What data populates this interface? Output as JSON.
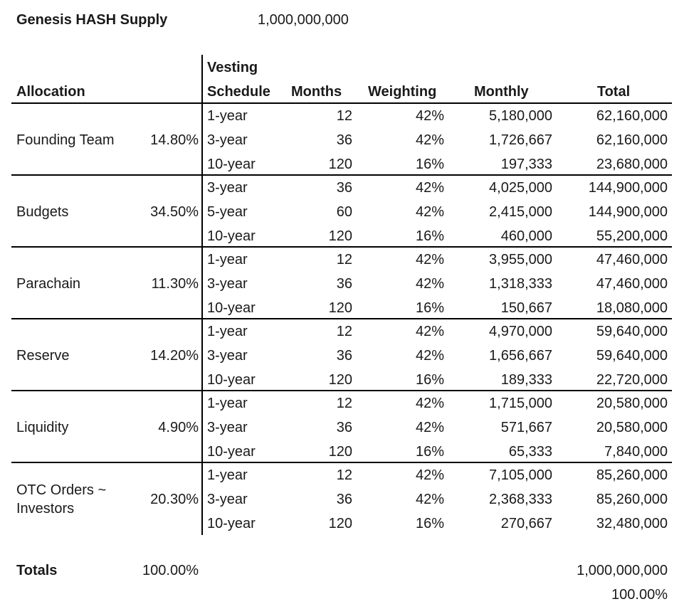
{
  "header": {
    "supply_label": "Genesis HASH Supply",
    "supply_value": "1,000,000,000"
  },
  "columns": {
    "allocation": "Allocation",
    "vesting": "Vesting",
    "schedule": "Schedule",
    "months": "Months",
    "weighting": "Weighting",
    "monthly": "Monthly",
    "total": "Total"
  },
  "groups": [
    {
      "name_lines": [
        "Founding Team"
      ],
      "percent": "14.80%",
      "rows": [
        {
          "schedule": "1-year",
          "months": "12",
          "weighting": "42%",
          "monthly": "5,180,000",
          "total": "62,160,000"
        },
        {
          "schedule": "3-year",
          "months": "36",
          "weighting": "42%",
          "monthly": "1,726,667",
          "total": "62,160,000"
        },
        {
          "schedule": "10-year",
          "months": "120",
          "weighting": "16%",
          "monthly": "197,333",
          "total": "23,680,000"
        }
      ]
    },
    {
      "name_lines": [
        "Budgets"
      ],
      "percent": "34.50%",
      "rows": [
        {
          "schedule": "3-year",
          "months": "36",
          "weighting": "42%",
          "monthly": "4,025,000",
          "total": "144,900,000"
        },
        {
          "schedule": "5-year",
          "months": "60",
          "weighting": "42%",
          "monthly": "2,415,000",
          "total": "144,900,000"
        },
        {
          "schedule": "10-year",
          "months": "120",
          "weighting": "16%",
          "monthly": "460,000",
          "total": "55,200,000"
        }
      ]
    },
    {
      "name_lines": [
        "Parachain"
      ],
      "percent": "11.30%",
      "rows": [
        {
          "schedule": "1-year",
          "months": "12",
          "weighting": "42%",
          "monthly": "3,955,000",
          "total": "47,460,000"
        },
        {
          "schedule": "3-year",
          "months": "36",
          "weighting": "42%",
          "monthly": "1,318,333",
          "total": "47,460,000"
        },
        {
          "schedule": "10-year",
          "months": "120",
          "weighting": "16%",
          "monthly": "150,667",
          "total": "18,080,000"
        }
      ]
    },
    {
      "name_lines": [
        "Reserve"
      ],
      "percent": "14.20%",
      "rows": [
        {
          "schedule": "1-year",
          "months": "12",
          "weighting": "42%",
          "monthly": "4,970,000",
          "total": "59,640,000"
        },
        {
          "schedule": "3-year",
          "months": "36",
          "weighting": "42%",
          "monthly": "1,656,667",
          "total": "59,640,000"
        },
        {
          "schedule": "10-year",
          "months": "120",
          "weighting": "16%",
          "monthly": "189,333",
          "total": "22,720,000"
        }
      ]
    },
    {
      "name_lines": [
        "Liquidity"
      ],
      "percent": "4.90%",
      "rows": [
        {
          "schedule": "1-year",
          "months": "12",
          "weighting": "42%",
          "monthly": "1,715,000",
          "total": "20,580,000"
        },
        {
          "schedule": "3-year",
          "months": "36",
          "weighting": "42%",
          "monthly": "571,667",
          "total": "20,580,000"
        },
        {
          "schedule": "10-year",
          "months": "120",
          "weighting": "16%",
          "monthly": "65,333",
          "total": "7,840,000"
        }
      ]
    },
    {
      "name_lines": [
        "OTC Orders ~",
        "Investors"
      ],
      "percent": "20.30%",
      "rows": [
        {
          "schedule": "1-year",
          "months": "12",
          "weighting": "42%",
          "monthly": "7,105,000",
          "total": "85,260,000"
        },
        {
          "schedule": "3-year",
          "months": "36",
          "weighting": "42%",
          "monthly": "2,368,333",
          "total": "85,260,000"
        },
        {
          "schedule": "10-year",
          "months": "120",
          "weighting": "16%",
          "monthly": "270,667",
          "total": "32,480,000"
        }
      ]
    }
  ],
  "totals": {
    "label": "Totals",
    "percent": "100.00%",
    "total": "1,000,000,000",
    "total_percent": "100.00%"
  }
}
